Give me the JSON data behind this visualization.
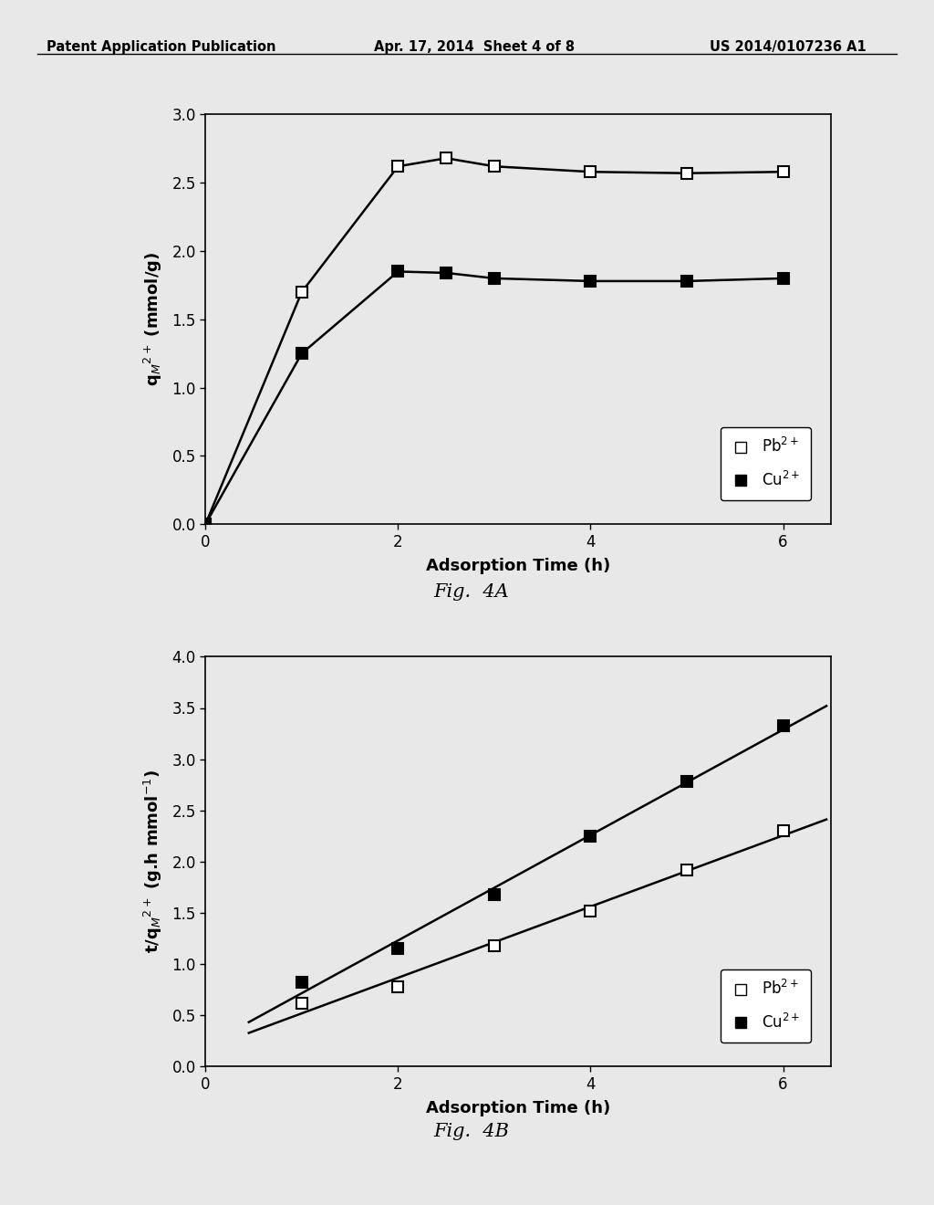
{
  "fig4A": {
    "pb_x": [
      0,
      1,
      2,
      2.5,
      3,
      4,
      5,
      6
    ],
    "pb_y": [
      0,
      1.7,
      2.62,
      2.68,
      2.62,
      2.58,
      2.57,
      2.58
    ],
    "cu_x": [
      0,
      1,
      2,
      2.5,
      3,
      4,
      5,
      6
    ],
    "cu_y": [
      0,
      1.25,
      1.85,
      1.84,
      1.8,
      1.78,
      1.78,
      1.8
    ],
    "xlabel": "Adsorption Time (h)",
    "ylabel": "q$_{M}$$^{2+}$ (mmol/g)",
    "xlim": [
      0,
      6.5
    ],
    "ylim": [
      0,
      3
    ],
    "xticks": [
      0,
      2,
      4,
      6
    ],
    "yticks": [
      0,
      0.5,
      1,
      1.5,
      2,
      2.5,
      3
    ],
    "fig_label": "Fig.  4A"
  },
  "fig4B": {
    "pb_x": [
      1,
      2,
      3,
      4,
      5,
      6
    ],
    "pb_y": [
      0.62,
      0.78,
      1.18,
      1.52,
      1.92,
      2.3
    ],
    "cu_x": [
      1,
      2,
      3,
      4,
      5,
      6
    ],
    "cu_y": [
      0.82,
      1.15,
      1.68,
      2.25,
      2.78,
      3.33
    ],
    "xlabel": "Adsorption Time (h)",
    "ylabel": "t/q$_{M}$$^{2+}$ (g.h mmol$^{-1}$)",
    "xlim": [
      0,
      6.5
    ],
    "ylim": [
      0,
      4
    ],
    "xticks": [
      0,
      2,
      4,
      6
    ],
    "yticks": [
      0,
      0.5,
      1,
      1.5,
      2,
      2.5,
      3,
      3.5,
      4
    ],
    "fig_label": "Fig.  4B"
  },
  "header_left": "Patent Application Publication",
  "header_mid": "Apr. 17, 2014  Sheet 4 of 8",
  "header_right": "US 2014/0107236 A1",
  "bg_color": "#e8e8e8",
  "plot_bg": "#e8e8e8"
}
